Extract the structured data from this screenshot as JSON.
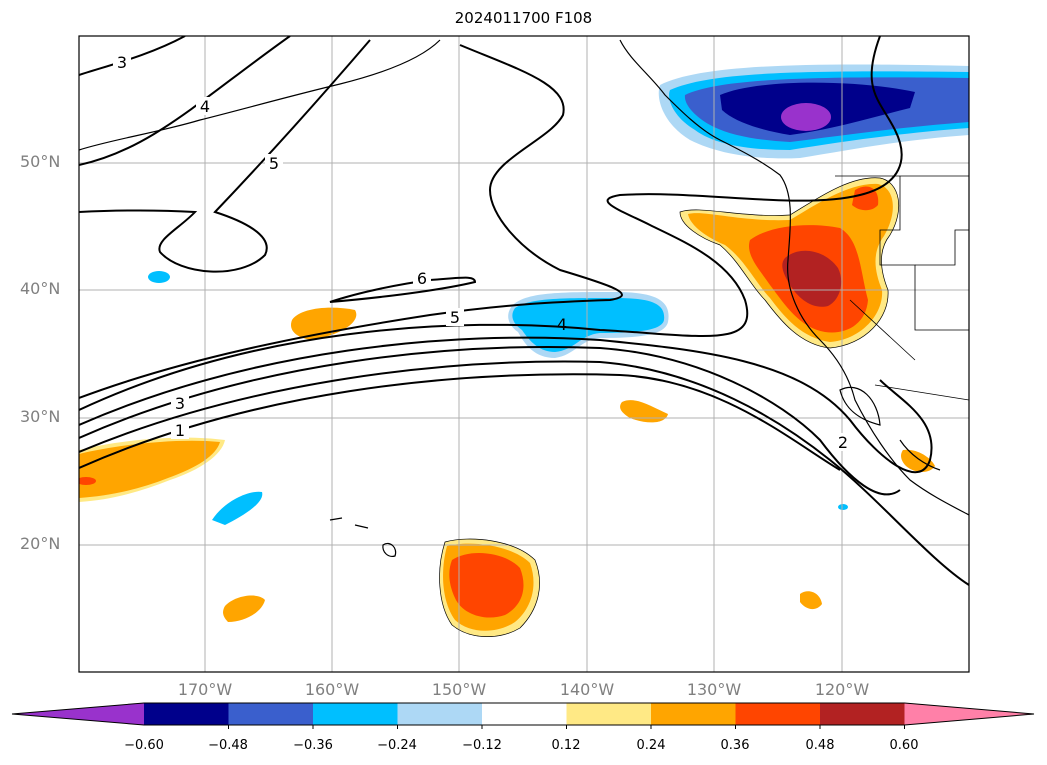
{
  "title": "2024011700 F108",
  "lat_labels": [
    "50°N",
    "40°N",
    "30°N",
    "20°N"
  ],
  "lon_labels": [
    "170°W",
    "160°W",
    "150°W",
    "140°W",
    "130°W",
    "120°W"
  ],
  "contour_labels": [
    "3",
    "4",
    "5",
    "6",
    "5",
    "4",
    "3",
    "1",
    "2"
  ],
  "colorbar": {
    "colors": [
      "#9932cc",
      "#00008b",
      "#3a5fcd",
      "#00bfff",
      "#add8f5",
      "#ffffff",
      "#ffe985",
      "#ffa500",
      "#ff4500",
      "#b22222",
      "#ff80a8"
    ],
    "tick_labels": [
      "−0.60",
      "−0.48",
      "−0.36",
      "−0.24",
      "−0.12",
      "0.12",
      "0.24",
      "0.36",
      "0.48",
      "0.60"
    ]
  },
  "colors": {
    "frame": "#000000",
    "grid": "#b0b0b0",
    "contour": "#000000",
    "axis_label": "#808080"
  }
}
